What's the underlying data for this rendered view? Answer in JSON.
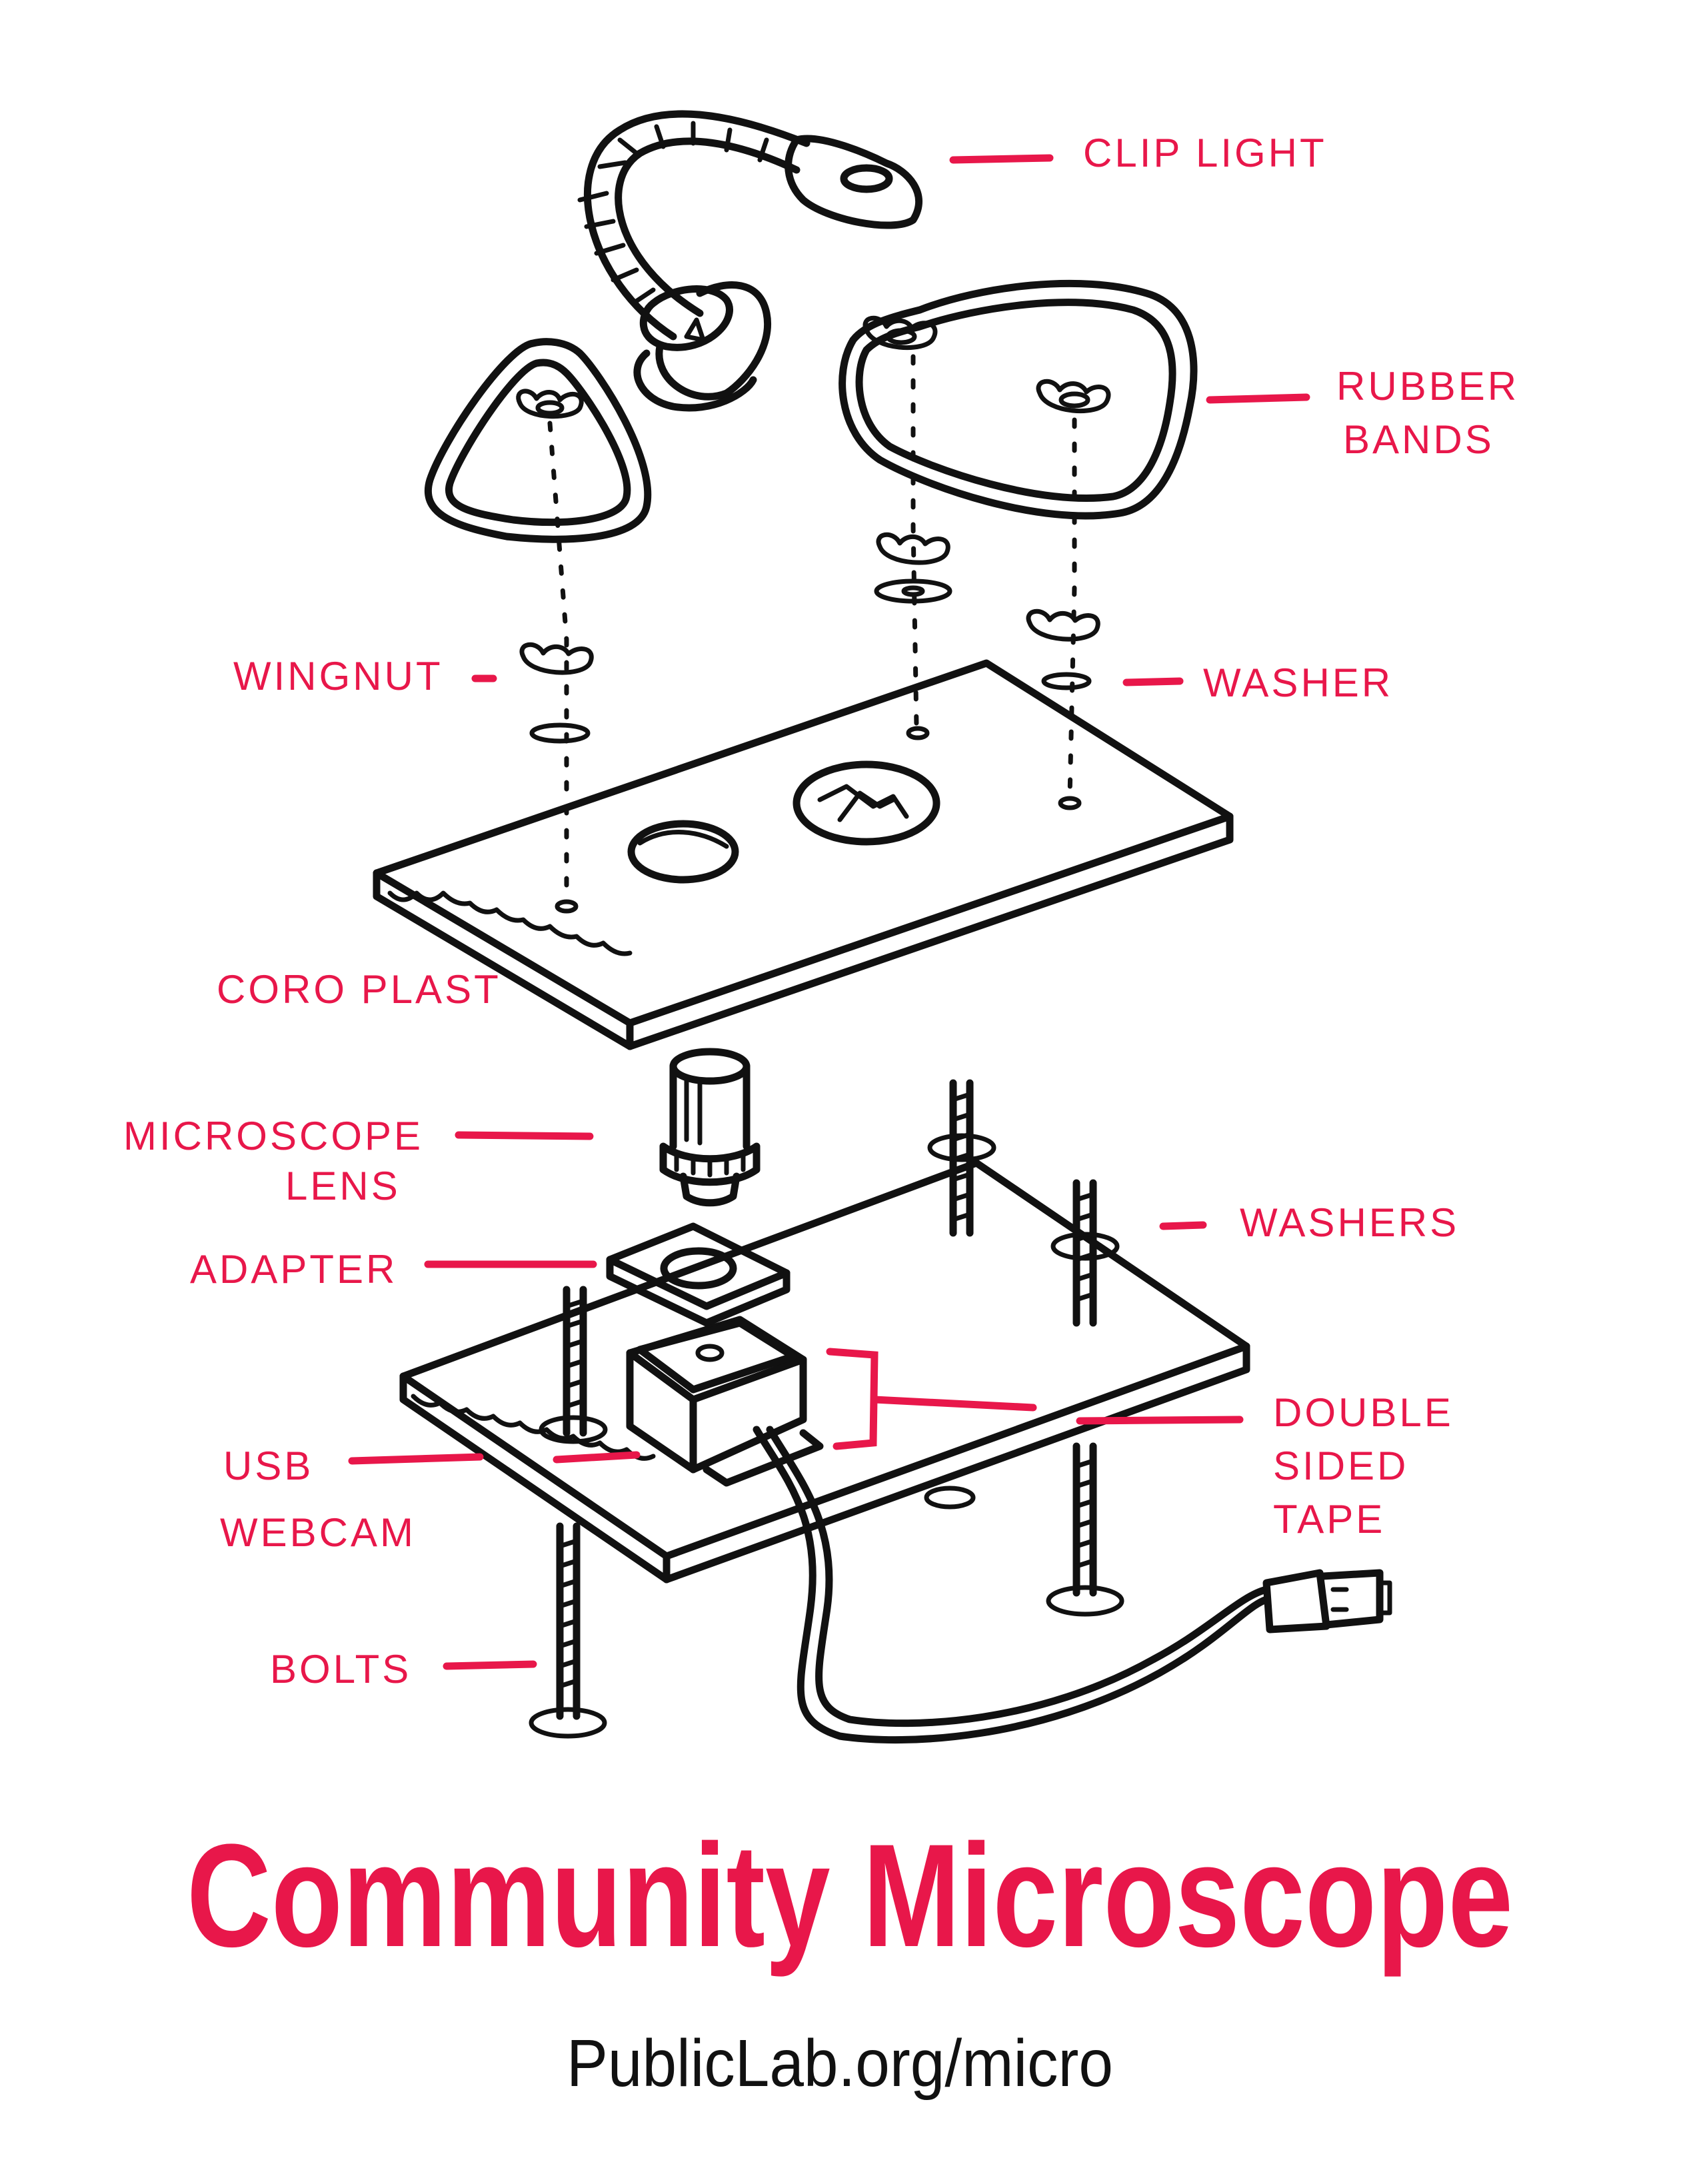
{
  "labels": {
    "clip_light": "CLIP LIGHT",
    "rubber_bands_1": "RUBBER",
    "rubber_bands_2": "BANDS",
    "wingnut": "WINGNUT",
    "washer": "WASHER",
    "coroplast": "CORO PLAST",
    "microscope_lens_1": "MICROSCOPE",
    "microscope_lens_2": "LENS",
    "adapter": "ADAPTER",
    "washers": "WASHERS",
    "double_sided_tape_1": "DOUBLE",
    "double_sided_tape_2": "SIDED",
    "double_sided_tape_3": "TAPE",
    "usb_webcam_1": "USB",
    "usb_webcam_2": "WEBCAM",
    "bolts": "BOLTS"
  },
  "title": "Community Microscope",
  "url": "PublicLab.org/micro",
  "colors": {
    "accent": "#e8174a",
    "ink": "#111111",
    "paper": "#ffffff"
  }
}
